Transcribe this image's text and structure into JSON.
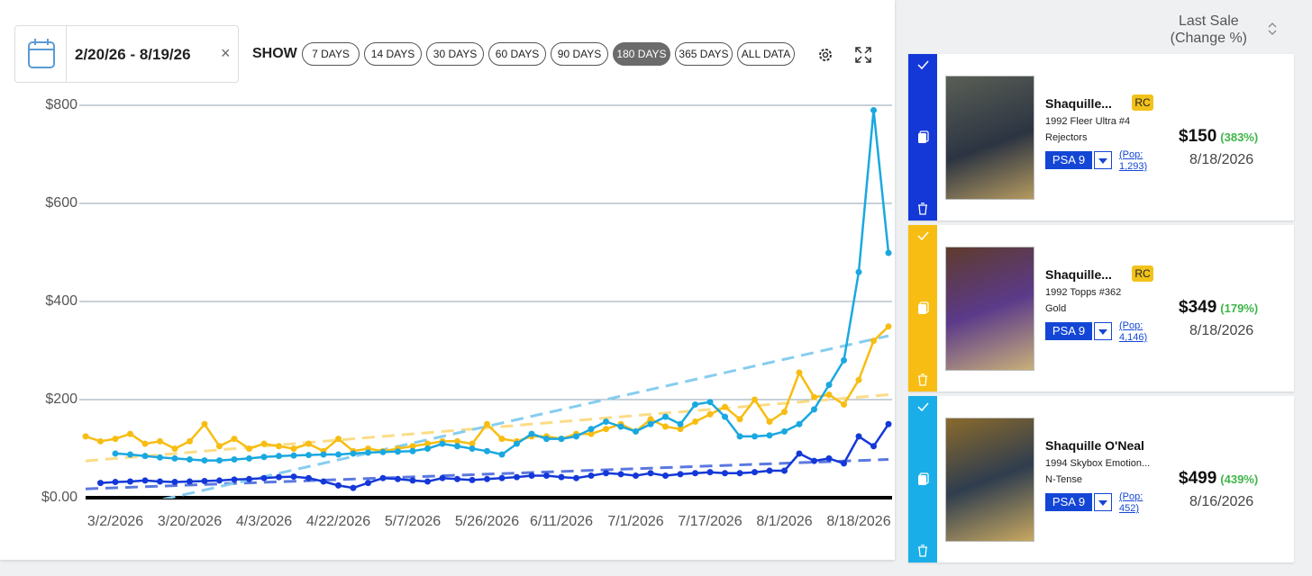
{
  "date_range": "2/20/26 - 8/19/26",
  "show_label": "SHOW",
  "range_buttons": [
    "7 DAYS",
    "14 DAYS",
    "30 DAYS",
    "60 DAYS",
    "90 DAYS",
    "180 DAYS",
    "365 DAYS",
    "ALL DATA"
  ],
  "active_button": 5,
  "chart_data": {
    "type": "line",
    "categories": [
      null,
      null,
      "3/2/2026",
      null,
      null,
      null,
      null,
      "3/20/2026",
      null,
      null,
      null,
      null,
      "4/3/2026",
      null,
      null,
      null,
      null,
      "4/22/2026",
      null,
      null,
      null,
      null,
      "5/7/2026",
      null,
      null,
      null,
      null,
      "5/26/2026",
      null,
      null,
      null,
      null,
      "6/11/2026",
      null,
      null,
      null,
      null,
      "7/1/2026",
      null,
      null,
      null,
      null,
      "7/17/2026",
      null,
      null,
      null,
      null,
      "8/1/2026",
      null,
      null,
      null,
      null,
      "8/18/2026",
      null,
      null
    ],
    "ylim": [
      0,
      800
    ],
    "yticks": [
      {
        "value": 0,
        "label": "$0.00"
      },
      {
        "value": 200,
        "label": "$200"
      },
      {
        "value": 400,
        "label": "$400"
      },
      {
        "value": 600,
        "label": "$600"
      },
      {
        "value": 800,
        "label": "$800"
      }
    ],
    "grid": true,
    "series": [
      {
        "color": "#1438d8",
        "trend_color": "#5b78e0",
        "trend": [
          18,
          78
        ],
        "values": [
          null,
          30,
          32,
          33,
          35,
          33,
          32,
          33,
          34,
          35,
          37,
          38,
          40,
          42,
          43,
          40,
          33,
          25,
          20,
          30,
          40,
          38,
          35,
          33,
          40,
          38,
          36,
          38,
          40,
          42,
          45,
          45,
          42,
          40,
          45,
          50,
          48,
          45,
          50,
          45,
          48,
          50,
          52,
          50,
          50,
          52,
          55,
          55,
          90,
          75,
          80,
          70,
          125,
          105,
          150
        ]
      },
      {
        "color": "#f7bd12",
        "trend_color": "#fbdc86",
        "trend": [
          75,
          210
        ],
        "values": [
          125,
          115,
          120,
          130,
          110,
          115,
          100,
          115,
          150,
          105,
          120,
          100,
          110,
          105,
          100,
          110,
          95,
          120,
          95,
          100,
          95,
          100,
          105,
          110,
          115,
          115,
          110,
          150,
          120,
          115,
          125,
          125,
          120,
          130,
          130,
          140,
          150,
          135,
          160,
          145,
          140,
          155,
          170,
          185,
          160,
          200,
          155,
          175,
          255,
          205,
          210,
          190,
          240,
          320,
          349
        ]
      },
      {
        "color": "#1aa8e0",
        "trend_color": "#86cdef",
        "trend": [
          -39,
          330
        ],
        "values": [
          null,
          null,
          90,
          88,
          85,
          82,
          80,
          78,
          76,
          76,
          78,
          80,
          83,
          85,
          86,
          87,
          88,
          88,
          90,
          92,
          93,
          94,
          95,
          100,
          110,
          105,
          100,
          95,
          88,
          110,
          130,
          120,
          120,
          125,
          140,
          155,
          145,
          135,
          150,
          165,
          150,
          190,
          195,
          165,
          125,
          125,
          127,
          135,
          150,
          180,
          230,
          280,
          460,
          790,
          499
        ]
      }
    ]
  },
  "panel": {
    "header": [
      "Last Sale",
      "(Change %)"
    ],
    "cards": [
      {
        "accent": "#1438d8",
        "name": "Shaquille...",
        "badge": "RC",
        "set_lines": [
          "1992 Fleer Ultra #4",
          "Rejectors"
        ],
        "grade": "PSA 9",
        "pop": "(Pop: 1,293)",
        "price": "$150",
        "change": "(383%)",
        "date": "8/18/2026"
      },
      {
        "accent": "#f7bd12",
        "name": "Shaquille...",
        "badge": "RC",
        "set_lines": [
          "1992 Topps #362",
          "Gold"
        ],
        "grade": "PSA 9",
        "pop": "(Pop: 4,146)",
        "price": "$349",
        "change": "(179%)",
        "date": "8/18/2026"
      },
      {
        "accent": "#1aaee8",
        "name": "Shaquille O'Neal",
        "set_lines": [
          "1994 Skybox Emotion...",
          "N-Tense"
        ],
        "grade": "PSA 9",
        "pop": "(Pop: 452)",
        "price": "$499",
        "change": "(439%)",
        "date": "8/16/2026"
      }
    ]
  }
}
